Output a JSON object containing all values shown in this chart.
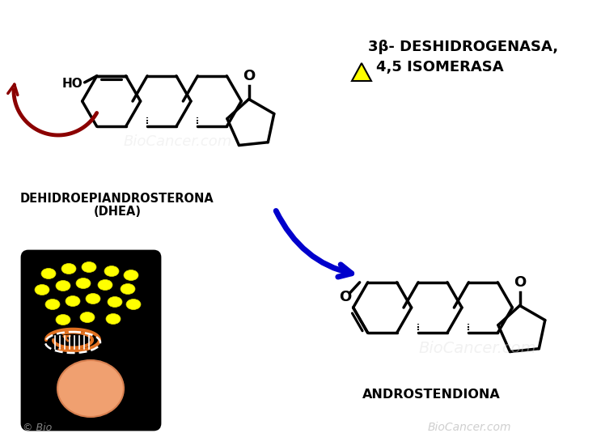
{
  "bg_color": "#ffffff",
  "enzyme_text_line1": "3β- DESHIDROGENASA,",
  "enzyme_text_line2": "4,5 ISOMERASA",
  "dhea_label_line1": "DEHIDROEPIANDROSTERONA",
  "dhea_label_line2": "(DHEA)",
  "androstenediona_label": "ANDROSTENDIONA",
  "watermark": "BioCancer.com",
  "watermark_bottom": "BioCancer.com",
  "copyright": "© Bio",
  "arrow_color": "#0000cc",
  "red_arrow_color": "#8b0000",
  "triangle_fill": "#ffff00",
  "triangle_edge": "#000000",
  "mol_lw": 2.5,
  "mol_color": "#000000"
}
